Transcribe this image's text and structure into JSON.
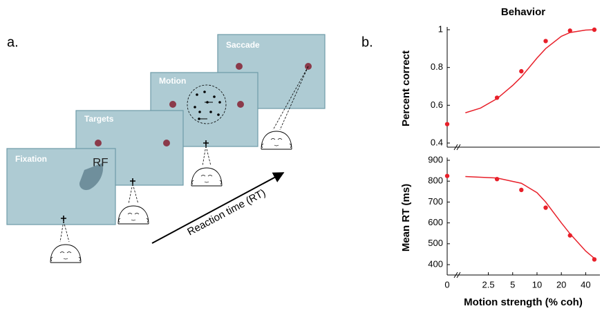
{
  "panel_a": {
    "label": "a.",
    "screens": [
      "Fixation",
      "Targets",
      "Motion",
      "Saccade"
    ],
    "rf_label": "RF",
    "arrow_label": "Reaction time (RT)"
  },
  "panel_b": {
    "label": "b."
  },
  "chart_data": [
    {
      "type": "line",
      "title": "Behavior",
      "ylabel": "Percent correct",
      "xscale": "log",
      "axis_break": true,
      "xlim": [
        1,
        60
      ],
      "ylim": [
        0.4,
        1
      ],
      "yticks": [
        0.4,
        0.6,
        0.8,
        1
      ],
      "series": [
        {
          "color": "#e8202a",
          "markers": true,
          "x": [
            0,
            3.2,
            6.4,
            12.8,
            25.6,
            51.2
          ],
          "values": [
            0.5,
            0.64,
            0.78,
            0.94,
            0.995,
            1.0
          ]
        },
        {
          "color": "#e8202a",
          "markers": false,
          "x": [
            1.3,
            2,
            3.2,
            5,
            6.4,
            10,
            12.8,
            20,
            25.6,
            40,
            51.2
          ],
          "values": [
            0.56,
            0.585,
            0.635,
            0.705,
            0.75,
            0.85,
            0.9,
            0.965,
            0.985,
            0.998,
            1.0
          ]
        }
      ]
    },
    {
      "type": "line",
      "ylabel": "Mean RT (ms)",
      "xlabel": "Motion strength (% coh)",
      "xscale": "log",
      "axis_break": true,
      "xlim": [
        1,
        60
      ],
      "ylim": [
        400,
        900
      ],
      "xticks": [
        0,
        2.5,
        5,
        10,
        20,
        40
      ],
      "yticks": [
        400,
        500,
        600,
        700,
        800,
        900
      ],
      "series": [
        {
          "color": "#e8202a",
          "markers": true,
          "x": [
            0,
            3.2,
            6.4,
            12.8,
            25.6,
            51.2
          ],
          "values": [
            825,
            810,
            758,
            673,
            540,
            425
          ]
        },
        {
          "color": "#e8202a",
          "markers": false,
          "x": [
            1.3,
            3.2,
            6.4,
            10,
            12.8,
            20,
            25.6,
            40,
            51.2
          ],
          "values": [
            822,
            815,
            790,
            745,
            700,
            600,
            548,
            465,
            430
          ]
        }
      ]
    }
  ]
}
